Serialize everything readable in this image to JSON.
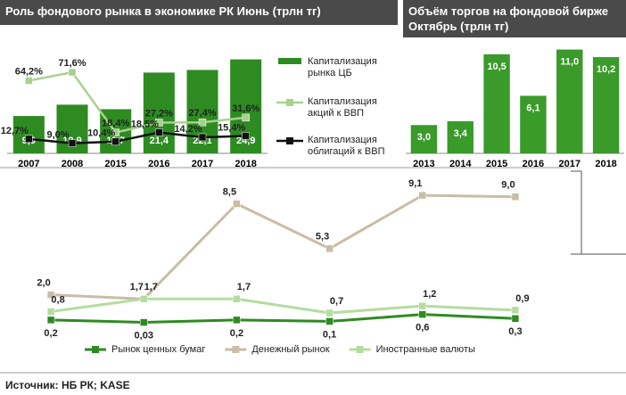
{
  "chart_data": [
    {
      "type": "bar",
      "title": "Роль фондового рынка в экономике РК Июнь (трлн тг)",
      "categories": [
        "2007",
        "2008",
        "2015",
        "2016",
        "2017",
        "2018"
      ],
      "ylim": [
        0,
        30
      ],
      "y2lim": [
        0,
        100
      ],
      "series": [
        {
          "name": "Капитализация рынка ЦБ",
          "type": "bar",
          "color": "#2e8b22",
          "values": [
            9.9,
            12.9,
            11.7,
            21.4,
            22.1,
            24.9
          ],
          "value_labels": [
            "9,9",
            "12,9",
            "11,7",
            "21,4",
            "22,1",
            "24,9"
          ]
        },
        {
          "name": "Капитализация акций к ВВП",
          "type": "line",
          "axis": "y2",
          "color": "#a9d18e",
          "values": [
            64.2,
            71.6,
            18.4,
            27.2,
            27.4,
            31.6
          ],
          "value_labels": [
            "64,2%",
            "71,6%",
            "18,4%",
            "27,2%",
            "27,4%",
            "31,6%"
          ]
        },
        {
          "name": "Капитализация облигаций к ВВП",
          "type": "line",
          "axis": "y2",
          "color": "#111111",
          "values": [
            12.7,
            9.0,
            10.4,
            18.5,
            14.2,
            15.4
          ],
          "value_labels": [
            "12,7%",
            "9,0%",
            "10,4%",
            "18,5%",
            "14,2%",
            "15,4%"
          ]
        }
      ]
    },
    {
      "type": "bar",
      "title": "Объём торгов  на фондовой бирже Октябрь (трлн тг)",
      "categories": [
        "2013",
        "2014",
        "2015",
        "2016",
        "2017",
        "2018"
      ],
      "values": [
        3.0,
        3.4,
        10.5,
        6.1,
        11.0,
        10.2
      ],
      "value_labels": [
        "3,0",
        "3,4",
        "10,5",
        "6,1",
        "11,0",
        "10,2"
      ],
      "color": "#3a9a2a",
      "ylim": [
        0,
        12
      ]
    },
    {
      "type": "line",
      "categories": [
        null,
        null,
        null,
        null,
        null,
        null
      ],
      "ylim": [
        0,
        10
      ],
      "series": [
        {
          "name": "Рынок ценных бумаг",
          "color": "#2e8b22",
          "values": [
            0.2,
            0.03,
            0.2,
            0.1,
            0.6,
            0.3
          ],
          "value_labels": [
            "0,2",
            "0,03",
            "0,2",
            "0,1",
            "0,6",
            "0,3"
          ]
        },
        {
          "name": "Денежный рынок",
          "color": "#c9bda6",
          "values": [
            2.0,
            1.7,
            8.5,
            5.3,
            9.1,
            9.0
          ],
          "value_labels": [
            "2,0",
            "1,7",
            "8,5",
            "5,3",
            "9,1",
            "9,0"
          ]
        },
        {
          "name": "Иностранные валюты",
          "color": "#b5dca0",
          "values": [
            0.8,
            1.7,
            1.7,
            0.7,
            1.2,
            0.9
          ],
          "value_labels": [
            "0,8",
            "1,7",
            "1,7",
            "0,7",
            "1,2",
            "0,9"
          ]
        }
      ]
    }
  ],
  "source": "Источник:  НБ РК; KASE"
}
